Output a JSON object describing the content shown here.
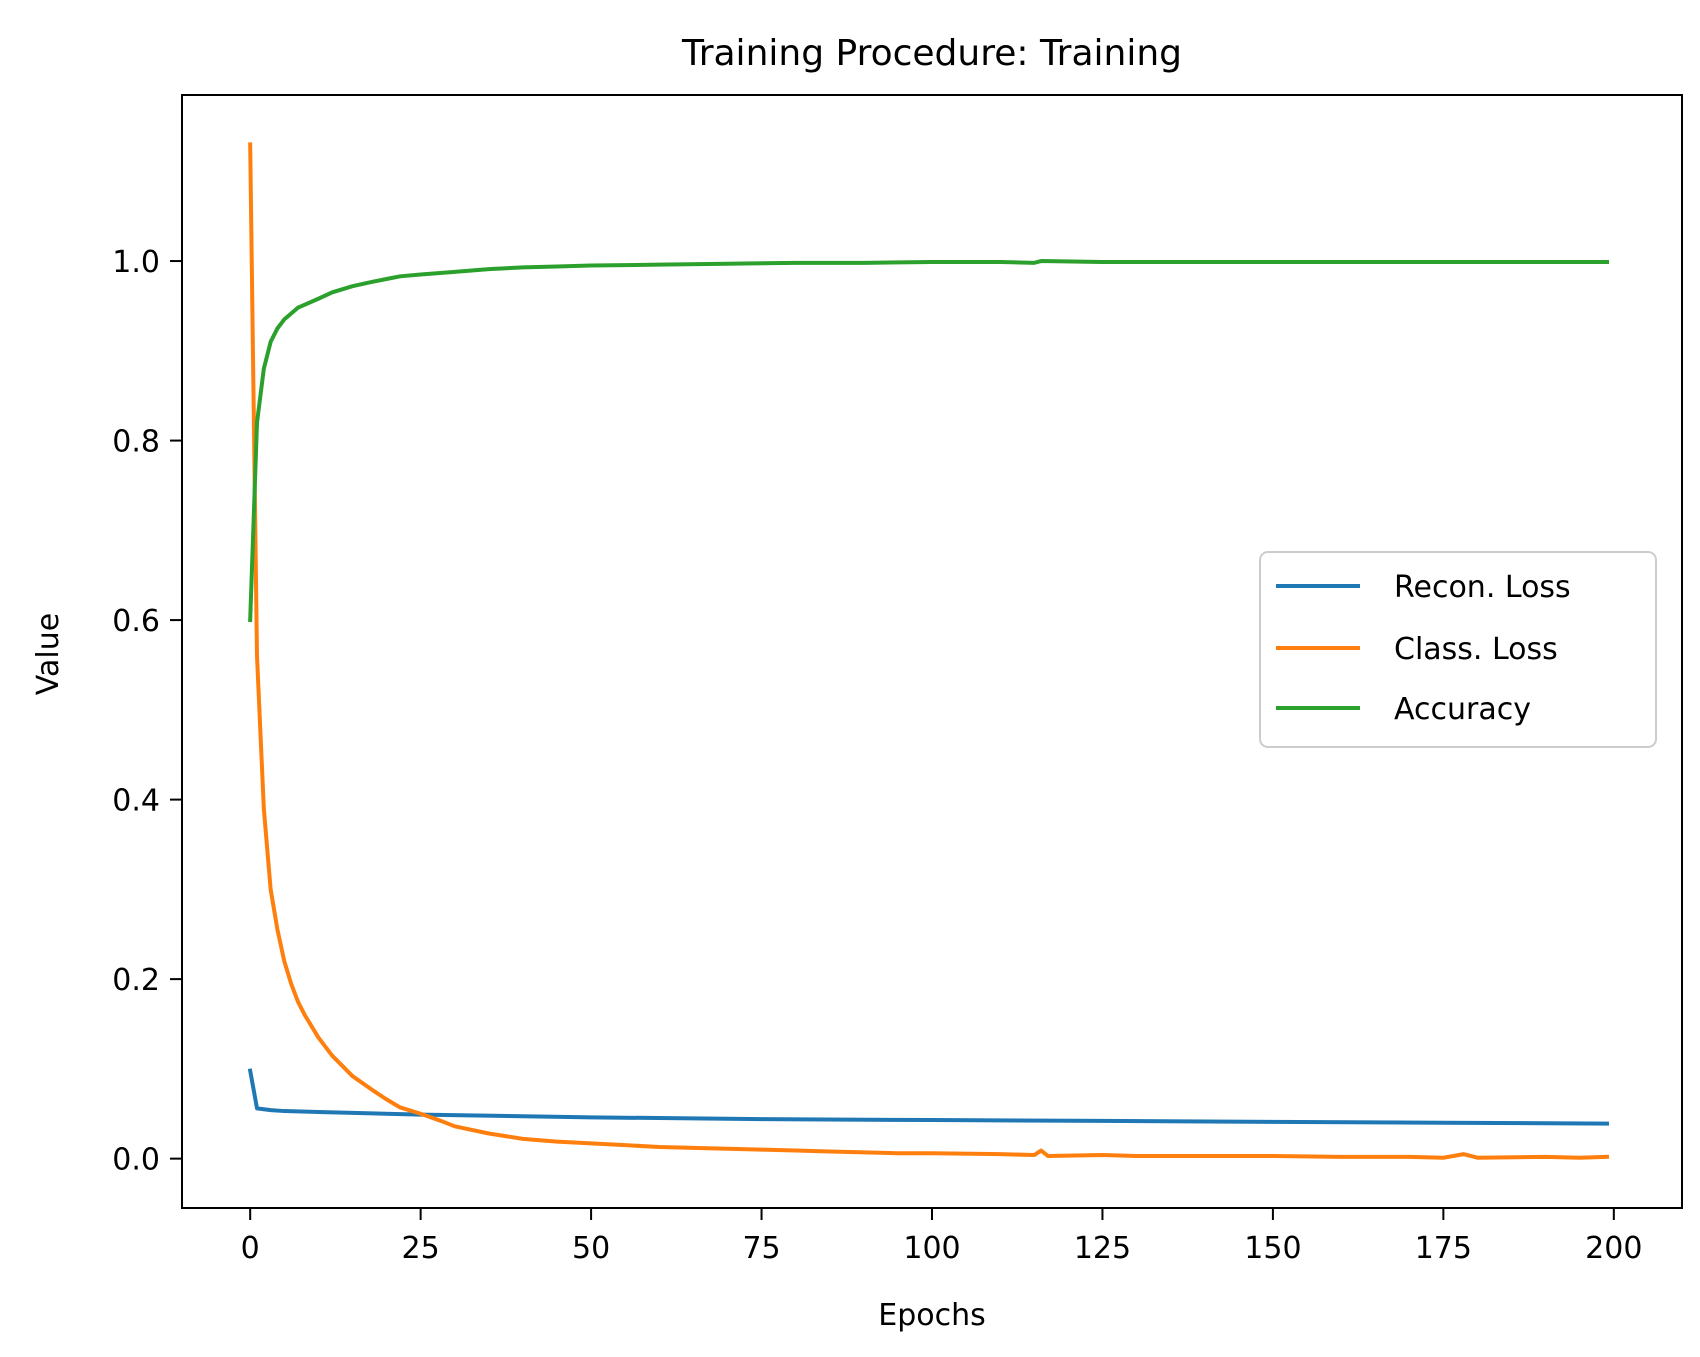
{
  "chart_data": {
    "type": "line",
    "title": "Training Procedure: Training",
    "xlabel": "Epochs",
    "ylabel": "Value",
    "xlim": [
      -10,
      210
    ],
    "ylim": [
      -0.055,
      1.185
    ],
    "x_ticks": [
      0,
      25,
      50,
      75,
      100,
      125,
      150,
      175,
      200
    ],
    "y_ticks": [
      0.0,
      0.2,
      0.4,
      0.6,
      0.8,
      1.0
    ],
    "x_tick_labels": [
      "0",
      "25",
      "50",
      "75",
      "100",
      "125",
      "150",
      "175",
      "200"
    ],
    "y_tick_labels": [
      "0.0",
      "0.2",
      "0.4",
      "0.6",
      "0.8",
      "1.0"
    ],
    "grid": false,
    "legend_position": "center-right",
    "series": [
      {
        "name": "Recon. Loss",
        "color": "#1f77b4",
        "points": [
          [
            0,
            0.098
          ],
          [
            1,
            0.056
          ],
          [
            3,
            0.054
          ],
          [
            5,
            0.053
          ],
          [
            10,
            0.052
          ],
          [
            25,
            0.049
          ],
          [
            50,
            0.046
          ],
          [
            75,
            0.044
          ],
          [
            100,
            0.043
          ],
          [
            125,
            0.042
          ],
          [
            150,
            0.041
          ],
          [
            175,
            0.04
          ],
          [
            199,
            0.039
          ]
        ]
      },
      {
        "name": "Class. Loss",
        "color": "#ff7f0e",
        "points": [
          [
            0,
            1.13
          ],
          [
            1,
            0.56
          ],
          [
            2,
            0.39
          ],
          [
            3,
            0.3
          ],
          [
            4,
            0.255
          ],
          [
            5,
            0.22
          ],
          [
            6,
            0.195
          ],
          [
            7,
            0.175
          ],
          [
            8,
            0.16
          ],
          [
            10,
            0.135
          ],
          [
            12,
            0.115
          ],
          [
            15,
            0.092
          ],
          [
            18,
            0.076
          ],
          [
            20,
            0.066
          ],
          [
            22,
            0.057
          ],
          [
            25,
            0.05
          ],
          [
            28,
            0.042
          ],
          [
            30,
            0.036
          ],
          [
            35,
            0.028
          ],
          [
            40,
            0.022
          ],
          [
            45,
            0.019
          ],
          [
            50,
            0.017
          ],
          [
            55,
            0.015
          ],
          [
            60,
            0.013
          ],
          [
            65,
            0.012
          ],
          [
            70,
            0.011
          ],
          [
            75,
            0.01
          ],
          [
            80,
            0.009
          ],
          [
            85,
            0.008
          ],
          [
            90,
            0.007
          ],
          [
            95,
            0.006
          ],
          [
            100,
            0.006
          ],
          [
            110,
            0.005
          ],
          [
            115,
            0.004
          ],
          [
            116,
            0.009
          ],
          [
            117,
            0.003
          ],
          [
            125,
            0.004
          ],
          [
            130,
            0.003
          ],
          [
            140,
            0.003
          ],
          [
            150,
            0.003
          ],
          [
            160,
            0.002
          ],
          [
            170,
            0.002
          ],
          [
            175,
            0.001
          ],
          [
            178,
            0.005
          ],
          [
            180,
            0.001
          ],
          [
            190,
            0.002
          ],
          [
            195,
            0.001
          ],
          [
            199,
            0.002
          ]
        ]
      },
      {
        "name": "Accuracy",
        "color": "#2ca02c",
        "points": [
          [
            0,
            0.6
          ],
          [
            1,
            0.82
          ],
          [
            2,
            0.88
          ],
          [
            3,
            0.91
          ],
          [
            4,
            0.925
          ],
          [
            5,
            0.935
          ],
          [
            7,
            0.948
          ],
          [
            10,
            0.958
          ],
          [
            12,
            0.965
          ],
          [
            15,
            0.972
          ],
          [
            18,
            0.977
          ],
          [
            20,
            0.98
          ],
          [
            22,
            0.983
          ],
          [
            25,
            0.985
          ],
          [
            30,
            0.988
          ],
          [
            35,
            0.991
          ],
          [
            40,
            0.993
          ],
          [
            45,
            0.994
          ],
          [
            50,
            0.995
          ],
          [
            60,
            0.996
          ],
          [
            70,
            0.997
          ],
          [
            80,
            0.998
          ],
          [
            90,
            0.998
          ],
          [
            100,
            0.999
          ],
          [
            110,
            0.999
          ],
          [
            115,
            0.998
          ],
          [
            116,
            1.0
          ],
          [
            125,
            0.999
          ],
          [
            150,
            0.999
          ],
          [
            175,
            0.999
          ],
          [
            199,
            0.999
          ]
        ]
      }
    ]
  }
}
